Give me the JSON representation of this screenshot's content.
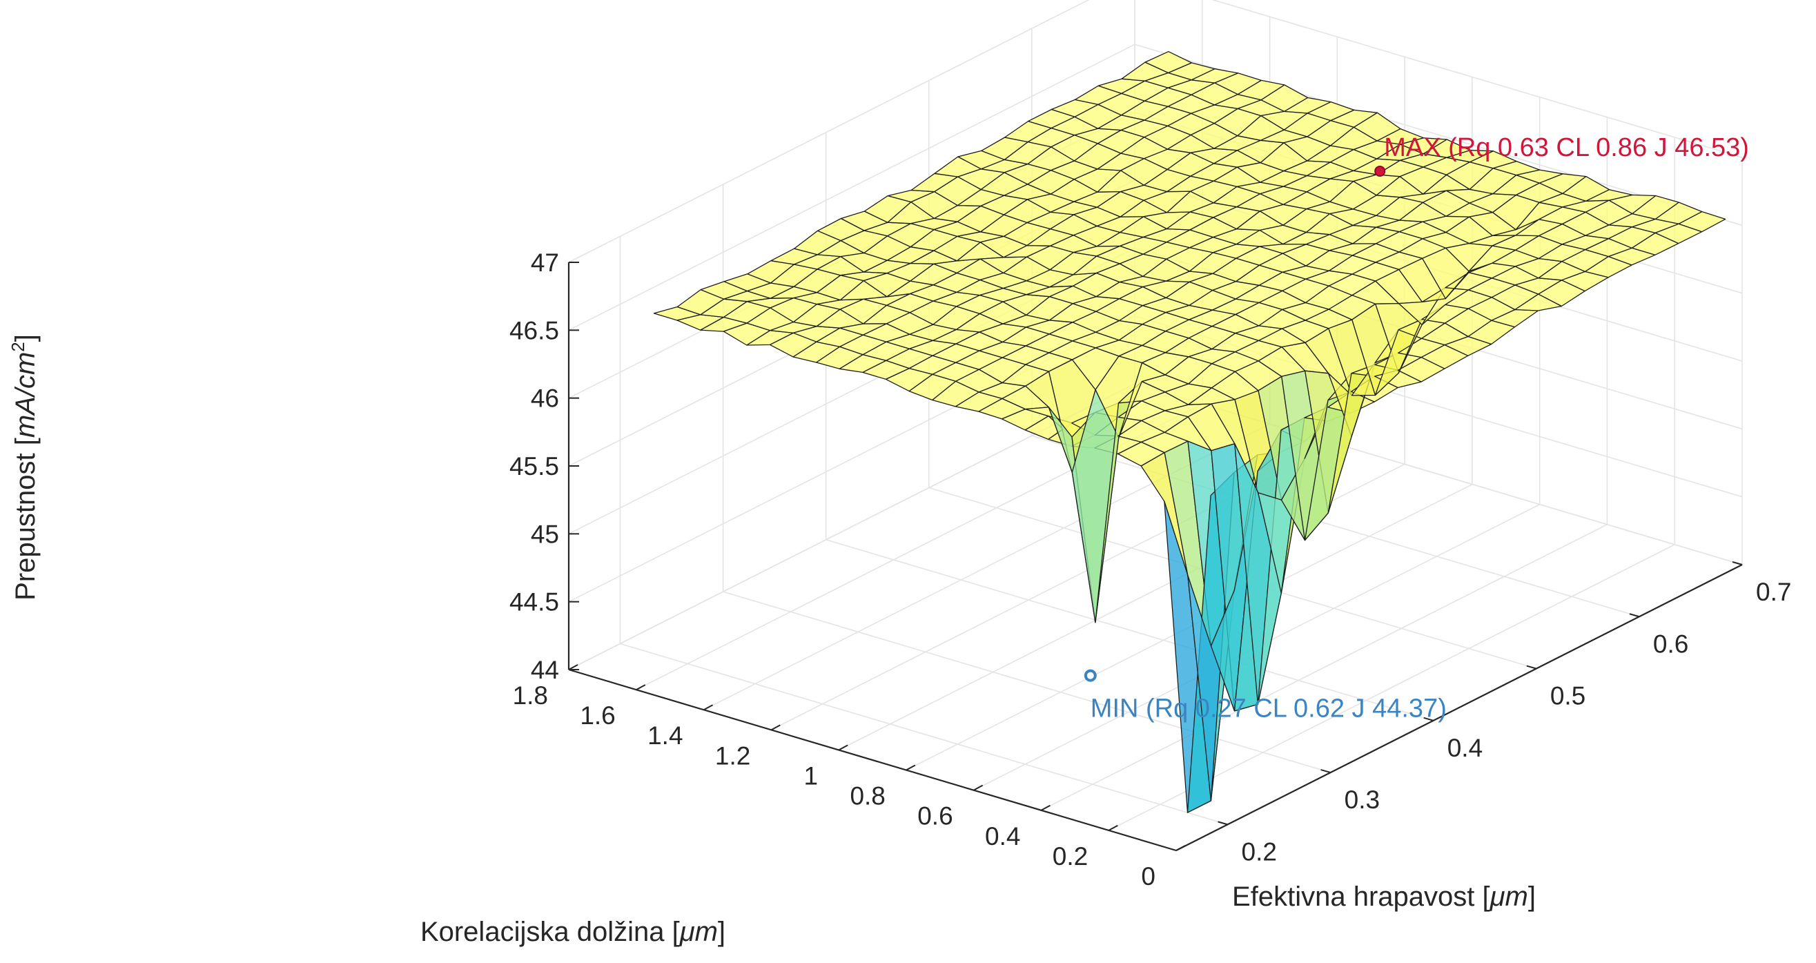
{
  "chart_data": {
    "type": "surface3d",
    "x_axis": {
      "label_text": "Korelacijska dolžina [",
      "label_unit": "μm",
      "label_close": "]",
      "range": [
        0,
        1.8
      ],
      "ticks": [
        "0",
        "0.2",
        "0.4",
        "0.6",
        "0.8",
        "1",
        "1.2",
        "1.4",
        "1.6",
        "1.8"
      ]
    },
    "y_axis": {
      "label_text": "Efektivna hrapavost [",
      "label_unit": "μm",
      "label_close": "]",
      "range": [
        0.15,
        0.7
      ],
      "ticks": [
        "0.2",
        "0.3",
        "0.4",
        "0.5",
        "0.6",
        "0.7"
      ]
    },
    "z_axis": {
      "label_text": "Prepustnost [",
      "label_unit": "mA/cm",
      "label_sup": "2",
      "label_close": "]",
      "range": [
        44,
        47
      ],
      "ticks": [
        "44",
        "44.5",
        "45",
        "45.5",
        "46",
        "46.5",
        "47"
      ]
    },
    "grid": true,
    "surface": {
      "cl_range": [
        0.05,
        1.7
      ],
      "rq_range": [
        0.2,
        0.7
      ],
      "baseline_J": 46.5,
      "colormap": [
        "#5a3fa8",
        "#2f8fe0",
        "#25c3d6",
        "#75e2c8",
        "#f0f24a",
        "#ffff80"
      ]
    },
    "max_point": {
      "Rq": 0.63,
      "CL": 0.86,
      "J": 46.53,
      "label": "MAX (Rq 0.63 CL 0.86 J 46.53)",
      "color": "#d0163a"
    },
    "min_point": {
      "Rq": 0.27,
      "CL": 0.62,
      "J": 44.37,
      "label": "MIN (Rq 0.27 CL 0.62 J 44.37)",
      "color": "#3b84c2"
    }
  }
}
